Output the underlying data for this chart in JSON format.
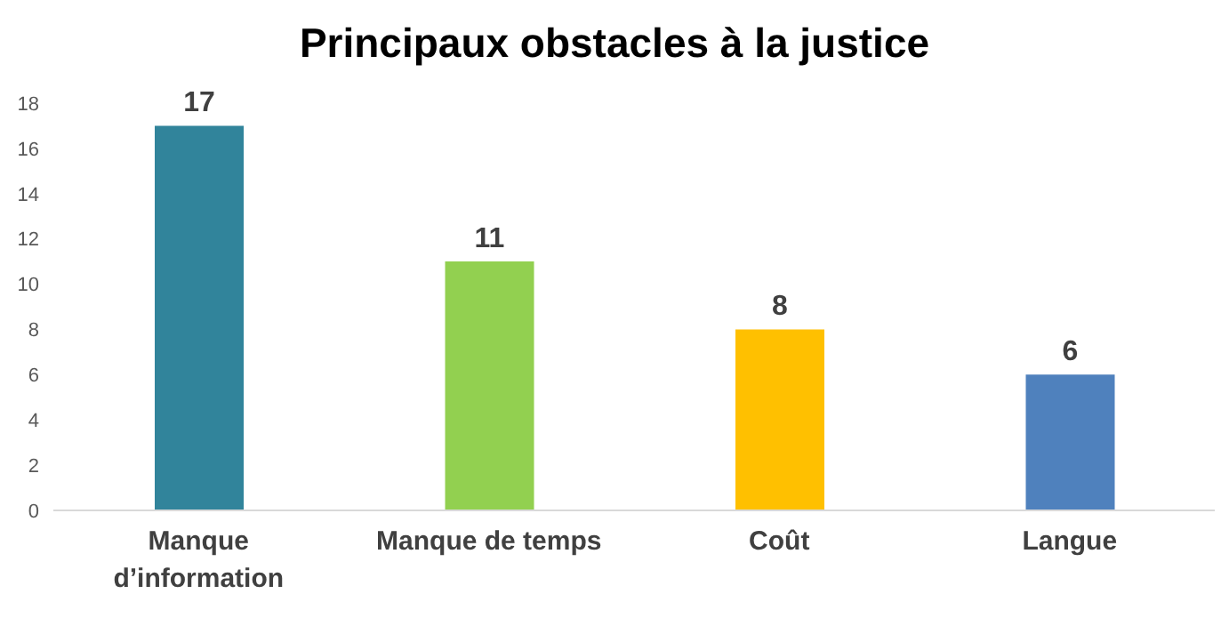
{
  "chart_data": {
    "type": "bar",
    "title": "Principaux obstacles à la justice",
    "categories": [
      "Manque d’information",
      "Manque de temps",
      "Coût",
      "Langue"
    ],
    "values": [
      17,
      11,
      8,
      6
    ],
    "colors": [
      "#31849b",
      "#92d050",
      "#ffc000",
      "#4f81bd"
    ],
    "ylim": [
      0,
      18
    ],
    "yticks": [
      0,
      2,
      4,
      6,
      8,
      10,
      12,
      14,
      16,
      18
    ],
    "data_labels": true,
    "grid": false,
    "legend": false
  }
}
